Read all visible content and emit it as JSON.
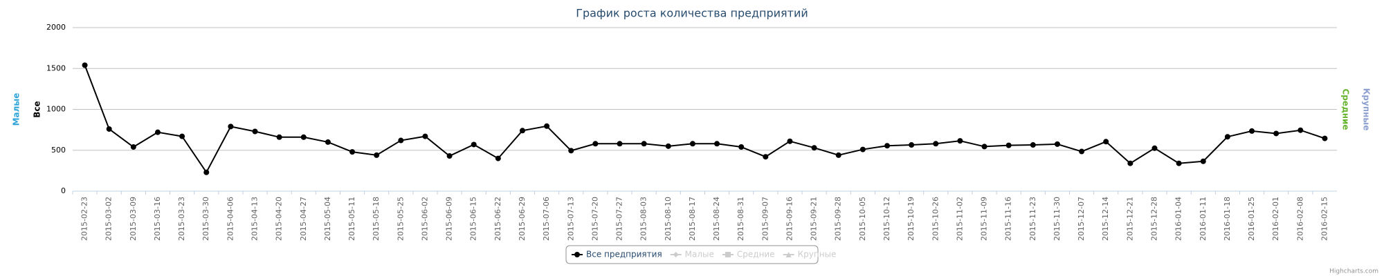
{
  "chart_data": {
    "type": "line",
    "title": "График роста количества предприятий",
    "categories": [
      "2015-02-23",
      "2015-03-02",
      "2015-03-09",
      "2015-03-16",
      "2015-03-23",
      "2015-03-30",
      "2015-04-06",
      "2015-04-13",
      "2015-04-20",
      "2015-04-27",
      "2015-05-04",
      "2015-05-11",
      "2015-05-18",
      "2015-05-25",
      "2015-06-02",
      "2015-06-09",
      "2015-06-15",
      "2015-06-22",
      "2015-06-29",
      "2015-07-06",
      "2015-07-13",
      "2015-07-20",
      "2015-07-27",
      "2015-08-03",
      "2015-08-10",
      "2015-08-17",
      "2015-08-24",
      "2015-08-31",
      "2015-09-07",
      "2015-09-16",
      "2015-09-21",
      "2015-09-28",
      "2015-10-05",
      "2015-10-12",
      "2015-10-19",
      "2015-10-26",
      "2015-11-02",
      "2015-11-09",
      "2015-11-16",
      "2015-11-23",
      "2015-11-30",
      "2015-12-07",
      "2015-12-14",
      "2015-12-21",
      "2015-12-28",
      "2016-01-04",
      "2016-01-11",
      "2016-01-18",
      "2016-01-25",
      "2016-02-01",
      "2016-02-08",
      "2016-02-15"
    ],
    "series": [
      {
        "name": "Все предприятия",
        "color": "#000000",
        "visible": true,
        "values": [
          1540,
          760,
          540,
          720,
          670,
          230,
          790,
          730,
          660,
          660,
          600,
          480,
          440,
          620,
          670,
          430,
          570,
          400,
          740,
          795,
          495,
          580,
          580,
          580,
          550,
          580,
          580,
          540,
          420,
          610,
          530,
          440,
          510,
          555,
          565,
          580,
          615,
          545,
          560,
          565,
          575,
          485,
          605,
          340,
          525,
          340,
          365,
          665,
          735,
          705,
          745,
          645
        ]
      },
      {
        "name": "Малые",
        "color": "#cccccc",
        "visible": false,
        "marker": "diamond"
      },
      {
        "name": "Средние",
        "color": "#cccccc",
        "visible": false,
        "marker": "square"
      },
      {
        "name": "Крупные",
        "color": "#cccccc",
        "visible": false,
        "marker": "triangle"
      }
    ],
    "axis_titles": [
      {
        "text": "Малые",
        "color": "#2fa4d9",
        "side": "left"
      },
      {
        "text": "Все",
        "color": "#000000",
        "side": "left"
      },
      {
        "text": "Средние",
        "color": "#66b32e",
        "side": "right"
      },
      {
        "text": "Крупные",
        "color": "#8c9fcf",
        "side": "right"
      }
    ],
    "ylim": [
      0,
      2000
    ],
    "yticks": [
      0,
      500,
      1000,
      1500,
      2000
    ],
    "grid": true,
    "credits": "Highcharts.com"
  }
}
